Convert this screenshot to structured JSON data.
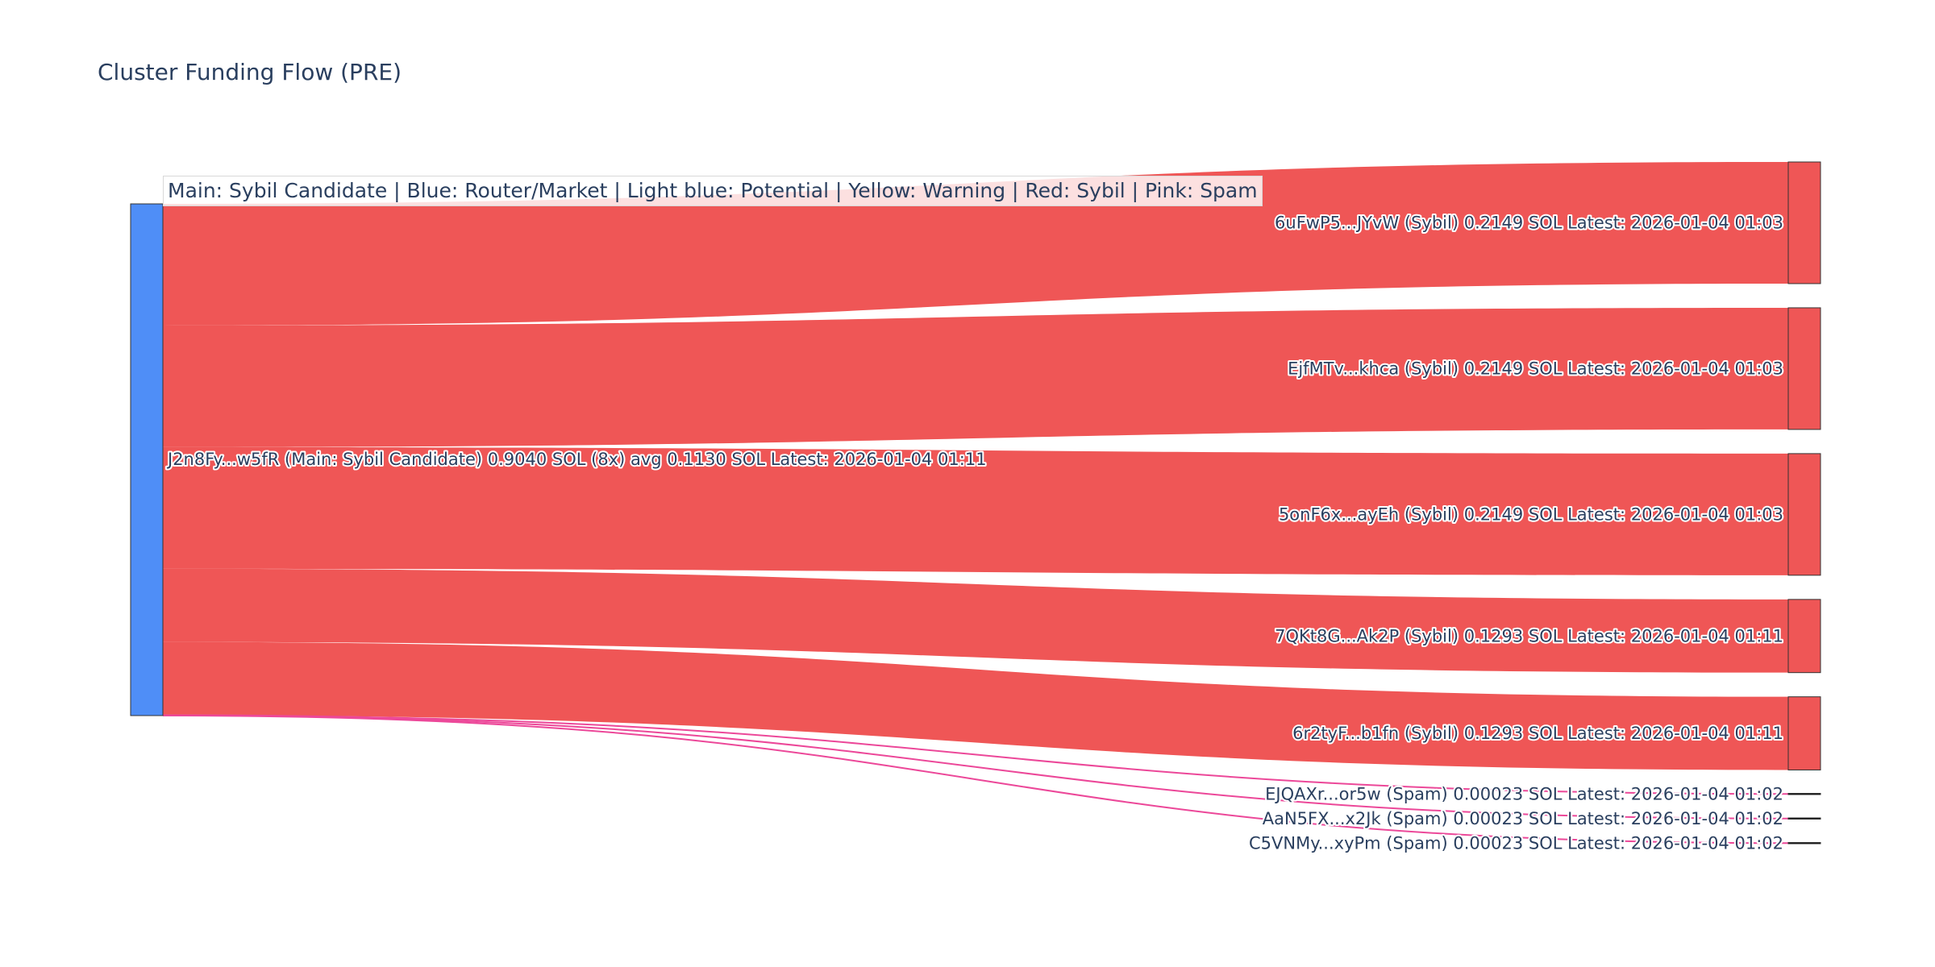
{
  "title": "Cluster Funding Flow (PRE)",
  "legend_text": "Main: Sybil Candidate  |  Blue: Router/Market | Light blue: Potential | Yellow: Warning | Red: Sybil | Pink: Spam",
  "colors": {
    "main_node": "#4f8ef7",
    "sybil_node": "#ef5656",
    "sybil_link": "#ef5656",
    "spam_link": "#ec4899",
    "node_border": "#333333"
  },
  "chart_data": {
    "type": "sankey",
    "unit": "SOL",
    "source": {
      "id": "J2n8Fy...w5fR",
      "label": "J2n8Fy...w5fR (Main: Sybil Candidate) 0.9040 SOL (8x) avg 0.1130 SOL Latest: 2026-01-04 01:11",
      "category": "Main: Sybil Candidate",
      "total": 0.904,
      "count": 8,
      "avg": 0.113,
      "latest": "2026-01-04 01:11"
    },
    "targets": [
      {
        "id": "6uFwP5...JYvW",
        "label": "6uFwP5...JYvW (Sybil) 0.2149 SOL Latest: 2026-01-04 01:03",
        "category": "Sybil",
        "value": 0.2149,
        "latest": "2026-01-04 01:03"
      },
      {
        "id": "EjfMTv...khca",
        "label": "EjfMTv...khca (Sybil) 0.2149 SOL Latest: 2026-01-04 01:03",
        "category": "Sybil",
        "value": 0.2149,
        "latest": "2026-01-04 01:03"
      },
      {
        "id": "5onF6x...ayEh",
        "label": "5onF6x...ayEh (Sybil) 0.2149 SOL Latest: 2026-01-04 01:03",
        "category": "Sybil",
        "value": 0.2149,
        "latest": "2026-01-04 01:03"
      },
      {
        "id": "7QKt8G...Ak2P",
        "label": "7QKt8G...Ak2P (Sybil) 0.1293 SOL Latest: 2026-01-04 01:11",
        "category": "Sybil",
        "value": 0.1293,
        "latest": "2026-01-04 01:11"
      },
      {
        "id": "6r2tyF...b1fn",
        "label": "6r2tyF...b1fn (Sybil) 0.1293 SOL Latest: 2026-01-04 01:11",
        "category": "Sybil",
        "value": 0.1293,
        "latest": "2026-01-04 01:11"
      },
      {
        "id": "EJQAXr...or5w",
        "label": "EJQAXr...or5w (Spam) 0.00023 SOL Latest: 2026-01-04 01:02",
        "category": "Spam",
        "value": 0.00023,
        "latest": "2026-01-04 01:02"
      },
      {
        "id": "AaN5FX...x2Jk",
        "label": "AaN5FX...x2Jk (Spam) 0.00023 SOL Latest: 2026-01-04 01:02",
        "category": "Spam",
        "value": 0.00023,
        "latest": "2026-01-04 01:02"
      },
      {
        "id": "C5VNMy...xyPm",
        "label": "C5VNMy...xyPm (Spam) 0.00023 SOL Latest: 2026-01-04 01:02",
        "category": "Spam",
        "value": 0.00023,
        "latest": "2026-01-04 01:02"
      }
    ]
  }
}
